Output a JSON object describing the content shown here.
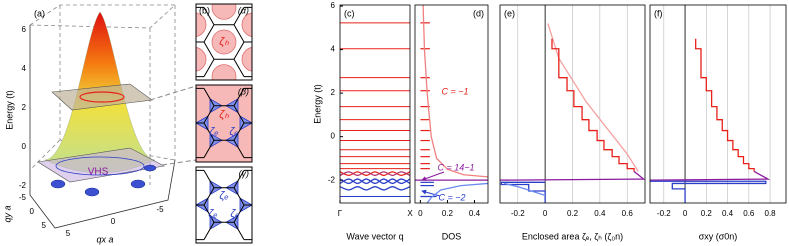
{
  "panel_a": {
    "label": "(a)",
    "zlabel": "Energy (t)",
    "zticks": [
      6,
      4,
      2,
      0,
      -2
    ],
    "qy_label": "qy a",
    "qy_ticks": [
      5,
      0,
      -5
    ],
    "qx_label": "qx a",
    "qx_ticks": [
      5,
      0,
      -5
    ],
    "annotation": "VHS"
  },
  "panel_b": {
    "label": "(b)",
    "insets": [
      {
        "label": "(α)",
        "regions": [
          "ζₕ"
        ]
      },
      {
        "label": "(β)",
        "regions": [
          "ζₕ",
          "ζₑ",
          "ζₑ"
        ]
      },
      {
        "label": "(γ)",
        "regions": [
          "ζₑ",
          "ζₑ",
          "ζₑ"
        ]
      }
    ]
  },
  "chart_data": [
    {
      "type": "line",
      "label": "(c)",
      "xlabel": "Wave vector q",
      "ylabel": "Energy (t)",
      "xlim": [
        0,
        1
      ],
      "xticks": [
        {
          "value": 0,
          "label": "Γ"
        },
        {
          "value": 1,
          "label": "X"
        }
      ],
      "ylim": [
        -3.05,
        6.05
      ],
      "yticks": [
        -2,
        0,
        2,
        4,
        6
      ],
      "levels": [
        {
          "color": "#e8201a",
          "values": [
            5.23,
            4.04,
            2.71,
            2.11,
            1.38,
            0.78,
            0.28,
            -0.18,
            -0.6,
            -0.92,
            -1.24,
            -1.47
          ]
        },
        {
          "color": "#2a3ec8",
          "values": [
            -2.75
          ]
        }
      ],
      "x": [
        0,
        0.125,
        0.25,
        0.375,
        0.5,
        0.625,
        0.75,
        0.875,
        1
      ],
      "series": [
        {
          "color": "#e8201a",
          "values": [
            -1.62,
            -1.78,
            -1.62,
            -1.78,
            -1.62,
            -1.78,
            -1.62,
            -1.78,
            -1.62
          ]
        },
        {
          "color": "#b0306a",
          "values": [
            -1.78,
            -1.62,
            -1.78,
            -1.62,
            -1.78,
            -1.62,
            -1.78,
            -1.62,
            -1.78
          ]
        },
        {
          "color": "#2a3ec8",
          "values": [
            -1.95,
            -2.15,
            -1.95,
            -2.15,
            -1.95,
            -2.15,
            -1.95,
            -2.15,
            -1.95
          ]
        },
        {
          "color": "#2a3ec8",
          "values": [
            -2.15,
            -1.95,
            -2.15,
            -1.95,
            -2.15,
            -1.95,
            -2.15,
            -1.95,
            -2.15
          ]
        },
        {
          "color": "#2a3ec8",
          "values": [
            -2.3,
            -2.45,
            -2.3,
            -2.45,
            -2.3,
            -2.45,
            -2.3,
            -2.45,
            -2.3
          ]
        }
      ]
    },
    {
      "type": "line",
      "label": "(d)",
      "xlabel": "DOS",
      "xlim": [
        -0.04,
        0.5
      ],
      "xticks": [
        0,
        0.2,
        0.4
      ],
      "ylim": [
        -3.05,
        6.05
      ],
      "spikes": [
        {
          "color": "#e8201a",
          "values": [
            5.23,
            4.04,
            2.71,
            2.11,
            1.38,
            0.78,
            0.28,
            -0.18,
            -0.6,
            -0.92,
            -1.24,
            -1.47
          ],
          "heights": [
            0.07,
            0.07,
            0.07,
            0.07,
            0.07,
            0.07,
            0.07,
            0.07,
            0.07,
            0.07,
            0.07,
            0.07
          ]
        },
        {
          "color": "#2a3ec8",
          "values": [
            -2.1,
            -2.25,
            -2.75
          ],
          "heights": [
            0.1,
            0.1,
            0.12
          ]
        }
      ],
      "series": [
        {
          "color": "#f08080",
          "x": [
            0.02,
            0.03,
            0.05,
            0.08,
            0.12,
            0.2,
            0.32,
            0.5
          ],
          "values": [
            6.05,
            4,
            2,
            0,
            -1,
            -1.5,
            -1.75,
            -1.85
          ]
        },
        {
          "color": "#6a8af0",
          "x": [
            0.5,
            0.3,
            0.15,
            0.08,
            0.05
          ],
          "values": [
            -2.15,
            -2.25,
            -2.45,
            -2.8,
            -3.05
          ]
        },
        {
          "color": "#8b1a9e",
          "x": [
            -0.04,
            0.5
          ],
          "values": [
            -2.0,
            -2.0
          ]
        }
      ],
      "annotations": [
        {
          "text": "C = −1",
          "color": "#e8201a"
        },
        {
          "text": "C = 14−1",
          "color": "#8b1a9e"
        },
        {
          "text": "C = −2",
          "color": "#2a3ec8"
        }
      ]
    },
    {
      "type": "line",
      "label": "(e)",
      "xlabel": "Enclosed area ζₑ, ζₕ (ζ₀n)",
      "grid": true,
      "xlim": [
        -0.33,
        0.73
      ],
      "xticks": [
        -0.2,
        0,
        0.2,
        0.4,
        0.6
      ],
      "ylim": [
        -3.05,
        6.05
      ],
      "series": [
        {
          "color": "#f4a0a0",
          "x": [
            0.02,
            0.1,
            0.2,
            0.3,
            0.4,
            0.5,
            0.6,
            0.68
          ],
          "values": [
            5.2,
            3.6,
            2.6,
            1.6,
            0.8,
            0.0,
            -0.8,
            -1.6
          ]
        },
        {
          "color": "#e8201a",
          "x": [
            0.05,
            0.05,
            0.1,
            0.1,
            0.16,
            0.16,
            0.21,
            0.21,
            0.27,
            0.27,
            0.32,
            0.32,
            0.38,
            0.38,
            0.43,
            0.43,
            0.49,
            0.49,
            0.54,
            0.54,
            0.6,
            0.6,
            0.65,
            0.65
          ],
          "values": [
            4.5,
            4.04,
            4.04,
            2.71,
            2.71,
            2.11,
            2.11,
            1.38,
            1.38,
            0.78,
            0.78,
            0.28,
            0.28,
            -0.18,
            -0.18,
            -0.6,
            -0.6,
            -0.92,
            -0.92,
            -1.24,
            -1.24,
            -1.47,
            -1.47,
            -1.6
          ]
        },
        {
          "color": "#8b1a9e",
          "x": [
            0.65,
            0.72,
            -0.33
          ],
          "values": [
            -1.6,
            -1.95,
            -2.0
          ]
        },
        {
          "color": "#2a3ec8",
          "x": [
            0.0,
            -0.32,
            -0.32,
            -0.12,
            -0.12,
            0,
            0
          ],
          "values": [
            -2.1,
            -2.1,
            -2.2,
            -2.2,
            -2.5,
            -2.5,
            -3.05
          ]
        },
        {
          "color": "#6a8af0",
          "x": [
            -0.3,
            -0.2,
            -0.1,
            0
          ],
          "values": [
            -2.15,
            -2.3,
            -2.5,
            -2.7
          ]
        }
      ]
    },
    {
      "type": "line",
      "label": "(f)",
      "xlabel": "σxy (σ0n)",
      "grid": true,
      "xlim": [
        -0.33,
        0.95
      ],
      "xticks": [
        -0.2,
        0,
        0.2,
        0.4,
        0.6,
        0.8
      ],
      "ylim": [
        -3.05,
        6.05
      ],
      "series": [
        {
          "color": "#e8201a",
          "x": [
            0.1,
            0.1,
            0.15,
            0.15,
            0.2,
            0.2,
            0.25,
            0.25,
            0.3,
            0.3,
            0.35,
            0.35,
            0.4,
            0.4,
            0.45,
            0.45,
            0.5,
            0.5,
            0.55,
            0.55,
            0.6,
            0.6,
            0.65,
            0.65
          ],
          "values": [
            4.5,
            4.04,
            4.04,
            2.71,
            2.71,
            2.11,
            2.11,
            1.38,
            1.38,
            0.78,
            0.78,
            0.28,
            0.28,
            -0.18,
            -0.18,
            -0.6,
            -0.6,
            -0.92,
            -0.92,
            -1.24,
            -1.24,
            -1.47,
            -1.47,
            -1.6
          ]
        },
        {
          "color": "#8b1a9e",
          "x": [
            0.65,
            0.78,
            -0.33
          ],
          "values": [
            -1.6,
            -1.95,
            -2.0
          ]
        },
        {
          "color": "#2a3ec8",
          "x": [
            -0.33,
            0.76,
            0.76,
            -0.12,
            -0.12,
            0,
            0
          ],
          "values": [
            -2.05,
            -2.05,
            -2.15,
            -2.15,
            -2.4,
            -2.4,
            -3.05
          ]
        }
      ]
    }
  ]
}
